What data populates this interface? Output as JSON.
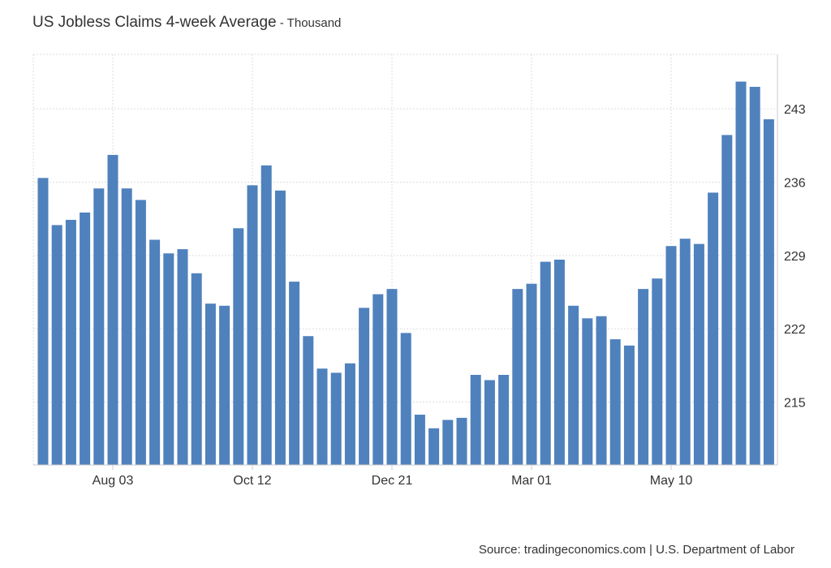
{
  "chart_data": {
    "type": "bar",
    "title": "US Jobless Claims 4-week Average",
    "subtitle": " - Thousand",
    "source": "Source: tradingeconomics.com | U.S. Department of Labor",
    "bar_color": "#4f81bd",
    "grid": true,
    "x_tick_labels": [
      {
        "label": "Aug 03",
        "index": 5
      },
      {
        "label": "Oct 12",
        "index": 15
      },
      {
        "label": "Dec 21",
        "index": 25
      },
      {
        "label": "Mar 01",
        "index": 35
      },
      {
        "label": "May 10",
        "index": 45
      }
    ],
    "y_ticks": [
      215,
      222,
      229,
      236,
      243
    ],
    "ylim": [
      209.0,
      248.2
    ],
    "values": [
      236.4,
      231.9,
      232.4,
      233.1,
      235.4,
      238.6,
      235.4,
      234.3,
      230.5,
      229.2,
      229.6,
      227.3,
      224.4,
      224.2,
      231.6,
      235.7,
      237.6,
      235.2,
      226.5,
      221.3,
      218.2,
      217.8,
      218.7,
      224.0,
      225.3,
      225.8,
      221.6,
      213.8,
      212.5,
      213.3,
      213.5,
      217.6,
      217.1,
      217.6,
      225.8,
      226.3,
      228.4,
      228.6,
      224.2,
      223.0,
      223.2,
      221.0,
      220.4,
      225.8,
      226.8,
      229.9,
      230.6,
      230.1,
      235.0,
      240.5,
      245.6,
      245.1,
      242.0
    ]
  }
}
